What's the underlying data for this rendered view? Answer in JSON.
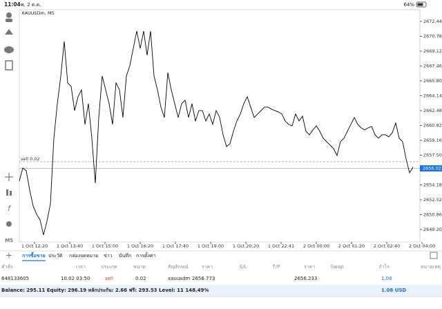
{
  "status_bar": {
    "time": "11:04",
    "date": "พ. 2 ต.ค.",
    "battery": "64%"
  },
  "chart": {
    "type": "line",
    "symbol": "XAUUSDm, M5",
    "timeframe": "M5",
    "color": "#000000",
    "ylim": [
      2647.81,
      2673.75
    ],
    "yticks": [
      {
        "value": 2672.44,
        "label": "2672.440"
      },
      {
        "value": 2670.78,
        "label": "2670.780"
      },
      {
        "value": 2669.12,
        "label": "2669.120"
      },
      {
        "value": 2667.46,
        "label": "2667.460"
      },
      {
        "value": 2665.8,
        "label": "2665.800"
      },
      {
        "value": 2664.14,
        "label": "2664.140"
      },
      {
        "value": 2662.48,
        "label": "2662.480"
      },
      {
        "value": 2660.82,
        "label": "2660.820"
      },
      {
        "value": 2659.16,
        "label": "2659.160"
      },
      {
        "value": 2657.5,
        "label": "2657.500"
      },
      {
        "value": 2654.18,
        "label": "2654.180"
      },
      {
        "value": 2652.52,
        "label": "2652.520"
      },
      {
        "value": 2650.86,
        "label": "2650.860"
      },
      {
        "value": 2649.2,
        "label": "2649.200"
      }
    ],
    "x_labels": [
      "1 Oct 12:20",
      "1 Oct 13:40",
      "1 Oct 15:00",
      "1 Oct 16:20",
      "1 Oct 17:40",
      "1 Oct 19:00",
      "1 Oct 20:20",
      "1 Oct 22:41",
      "2 Oct 00:00",
      "2 Oct 01:20",
      "2 Oct 02:40",
      "2 Oct 04:00"
    ],
    "values": [
      2654.61,
      2656.07,
      2655.76,
      2653.6,
      2651.83,
      2650.9,
      2650.28,
      2648.59,
      2650.13,
      2652.06,
      2659.39,
      2663.25,
      2666.34,
      2670.2,
      2665.57,
      2665.18,
      2662.48,
      2664.03,
      2664.8,
      2660.94,
      2663.25,
      2659.39,
      2654.38,
      2661.71,
      2666.34,
      2664.8,
      2663.25,
      2660.94,
      2665.57,
      2664.8,
      2661.71,
      2666.34,
      2667.5,
      2669.43,
      2671.36,
      2669.43,
      2671.36,
      2668.66,
      2671.36,
      2666.34,
      2664.8,
      2662.87,
      2661.71,
      2666.73,
      2664.8,
      2663.25,
      2661.71,
      2663.25,
      2663.64,
      2661.71,
      2663.25,
      2661.32,
      2662.48,
      2662.48,
      2661.32,
      2662.1,
      2660.94,
      2662.48,
      2661.71,
      2659.78,
      2658.47,
      2658.78,
      2660.17,
      2661.32,
      2662.1,
      2663.25,
      2664.03,
      2662.87,
      2661.71,
      2662.1,
      2662.48,
      2662.87,
      2662.87,
      2662.64,
      2662.48,
      2662.33,
      2662.1,
      2661.32,
      2660.94,
      2660.78,
      2662.1,
      2661.32,
      2661.86,
      2660.17,
      2659.78,
      2660.32,
      2660.78,
      2660.17,
      2659.39,
      2659.01,
      2658.62,
      2658.24,
      2657.46,
      2659.01,
      2659.39,
      2660.17,
      2660.94,
      2661.71,
      2660.94,
      2660.55,
      2660.32,
      2660.55,
      2660.71,
      2659.78,
      2659.39,
      2659.78,
      2659.78,
      2659.55,
      2660.01,
      2661.09,
      2659.39,
      2659.01,
      2657.08,
      2655.53,
      2656.15
    ],
    "order_line": {
      "label": "sell 0.02",
      "value": 2656.773
    },
    "bid": 2656.023
  },
  "tabs": [
    "การซื้อขาย",
    "ประวัติ",
    "กล่องจดหมาย",
    "ข่าว",
    "บันทึก",
    "การตั้งค่า"
  ],
  "table": {
    "headers": [
      "คำสั่ง",
      "เวลา",
      "ประเภท",
      "ขนาด",
      "สัญลักษณ์",
      "ราคา",
      "S/L",
      "T/P",
      "ราคา",
      "Swap",
      "กำไร",
      "หมายเหตุ"
    ],
    "row": [
      "648133605",
      "10.02 03:50",
      "sell",
      "0.02",
      "xauusdm",
      "2656.773",
      "2656.233",
      "1.08"
    ]
  },
  "summary": {
    "text": "Balance: 295.11 Equity: 296.19 หลักประกัน: 2.66 ฟรี: 293.53 Level: 11 148.49%",
    "total": "1.08 USD"
  }
}
